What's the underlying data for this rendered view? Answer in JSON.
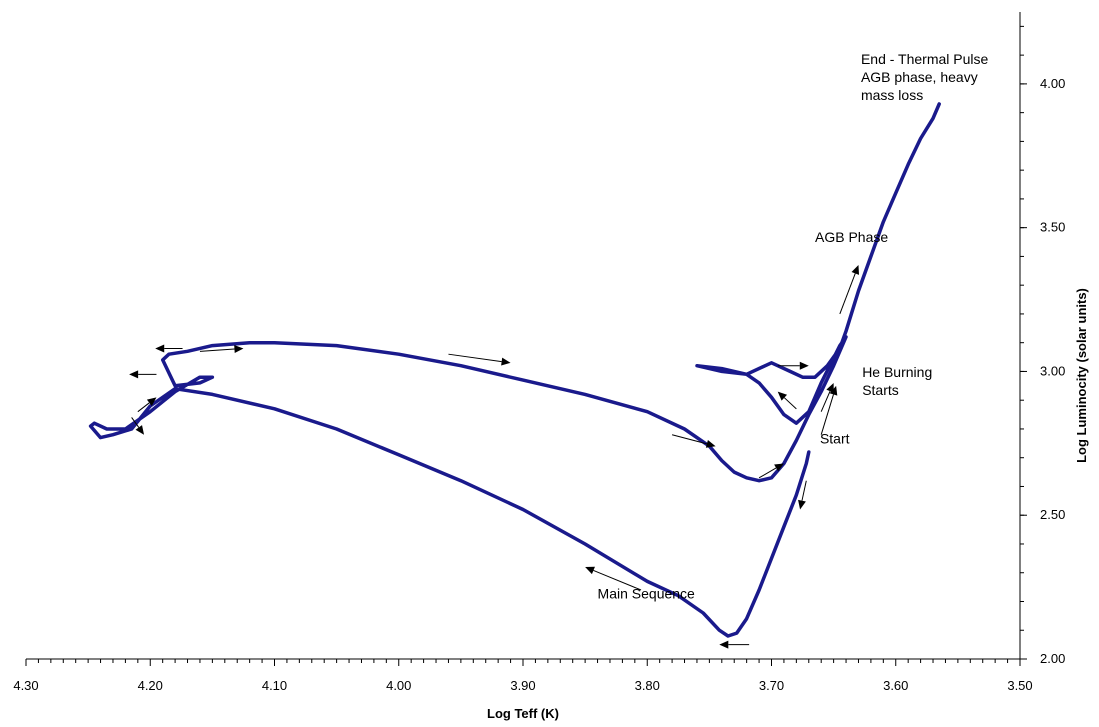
{
  "chart_data": {
    "type": "line",
    "title": "",
    "xlabel": "Log Teff (K)",
    "ylabel": "Log Luminocity (solar units)",
    "xlim": [
      4.3,
      3.5
    ],
    "ylim": [
      2.0,
      4.25
    ],
    "x_reversed": true,
    "y_axis_side": "right",
    "grid": false,
    "legend": "none",
    "x_ticks": [
      "4.30",
      "4.20",
      "4.10",
      "4.00",
      "3.90",
      "3.80",
      "3.70",
      "3.60",
      "3.50"
    ],
    "y_ticks": [
      "2.00",
      "2.50",
      "3.00",
      "3.50",
      "4.00"
    ],
    "series": [
      {
        "color": "#1a1a8c",
        "x": [
          3.67,
          3.672,
          3.68,
          3.69,
          3.7,
          3.71,
          3.72,
          3.728,
          3.735,
          3.742,
          3.755,
          3.775,
          3.8,
          3.85,
          3.9,
          3.95,
          4.0,
          4.05,
          4.1,
          4.15,
          4.18,
          4.2,
          4.215,
          4.23,
          4.24,
          4.248,
          4.245,
          4.235,
          4.22,
          4.2,
          4.18,
          4.16,
          4.15,
          4.16,
          4.18,
          4.19,
          4.185,
          4.17,
          4.15,
          4.12,
          4.1,
          4.05,
          4.0,
          3.95,
          3.9,
          3.85,
          3.8,
          3.77,
          3.75,
          3.74,
          3.73,
          3.72,
          3.71,
          3.7,
          3.69,
          3.68,
          3.67,
          3.66,
          3.65,
          3.64,
          3.645,
          3.66,
          3.67,
          3.68,
          3.69,
          3.7,
          3.71,
          3.72,
          3.73,
          3.74,
          3.76,
          3.74,
          3.72,
          3.7,
          3.685,
          3.675,
          3.665,
          3.655,
          3.645,
          3.64,
          3.63,
          3.62,
          3.61,
          3.6,
          3.59,
          3.58,
          3.57,
          3.565
        ],
        "y": [
          2.72,
          2.68,
          2.57,
          2.46,
          2.35,
          2.24,
          2.14,
          2.09,
          2.08,
          2.1,
          2.16,
          2.22,
          2.27,
          2.4,
          2.52,
          2.62,
          2.71,
          2.8,
          2.87,
          2.92,
          2.94,
          2.88,
          2.8,
          2.78,
          2.77,
          2.81,
          2.82,
          2.8,
          2.8,
          2.86,
          2.93,
          2.98,
          2.98,
          2.96,
          2.95,
          3.04,
          3.06,
          3.07,
          3.09,
          3.1,
          3.1,
          3.09,
          3.06,
          3.02,
          2.97,
          2.92,
          2.86,
          2.8,
          2.74,
          2.69,
          2.65,
          2.63,
          2.62,
          2.63,
          2.68,
          2.76,
          2.85,
          2.93,
          3.02,
          3.12,
          3.09,
          2.96,
          2.86,
          2.82,
          2.85,
          2.91,
          2.96,
          2.99,
          3.0,
          3.01,
          3.02,
          3.0,
          2.99,
          3.03,
          3.0,
          2.98,
          2.98,
          3.02,
          3.08,
          3.14,
          3.28,
          3.4,
          3.52,
          3.62,
          3.72,
          3.81,
          3.88,
          3.93
        ]
      }
    ],
    "annotations": [
      {
        "lines": [
          "End - Thermal Pulse",
          "AGB phase, heavy",
          "mass loss"
        ],
        "x": 3.628,
        "y": 4.07
      },
      {
        "lines": [
          "AGB Phase"
        ],
        "x": 3.665,
        "y": 3.45
      },
      {
        "lines": [
          "He Burning",
          "Starts"
        ],
        "x": 3.627,
        "y": 2.98
      },
      {
        "lines": [
          "Start"
        ],
        "x": 3.661,
        "y": 2.75
      },
      {
        "lines": [
          "Main Sequence"
        ],
        "x": 3.84,
        "y": 2.21
      }
    ],
    "arrows": [
      {
        "from": [
          3.645,
          3.2
        ],
        "to": [
          3.63,
          3.37
        ]
      },
      {
        "from": [
          3.695,
          3.02
        ],
        "to": [
          3.67,
          3.02
        ]
      },
      {
        "from": [
          3.68,
          2.87
        ],
        "to": [
          3.695,
          2.93
        ]
      },
      {
        "from": [
          3.66,
          2.86
        ],
        "to": [
          3.65,
          2.96
        ]
      },
      {
        "from": [
          3.66,
          2.78
        ],
        "to": [
          3.648,
          2.95
        ]
      },
      {
        "from": [
          3.71,
          2.63
        ],
        "to": [
          3.69,
          2.68
        ]
      },
      {
        "from": [
          3.672,
          2.62
        ],
        "to": [
          3.677,
          2.52
        ]
      },
      {
        "from": [
          3.78,
          2.78
        ],
        "to": [
          3.745,
          2.74
        ]
      },
      {
        "from": [
          3.96,
          3.06
        ],
        "to": [
          3.91,
          3.03
        ]
      },
      {
        "from": [
          4.16,
          3.07
        ],
        "to": [
          4.125,
          3.08
        ]
      },
      {
        "from": [
          4.174,
          3.08
        ],
        "to": [
          4.196,
          3.08
        ]
      },
      {
        "from": [
          4.195,
          2.99
        ],
        "to": [
          4.217,
          2.99
        ]
      },
      {
        "from": [
          4.21,
          2.86
        ],
        "to": [
          4.195,
          2.91
        ]
      },
      {
        "from": [
          4.215,
          2.84
        ],
        "to": [
          4.205,
          2.78
        ]
      },
      {
        "from": [
          3.805,
          2.24
        ],
        "to": [
          3.85,
          2.32
        ]
      },
      {
        "from": [
          3.718,
          2.05
        ],
        "to": [
          3.742,
          2.05
        ]
      }
    ]
  }
}
